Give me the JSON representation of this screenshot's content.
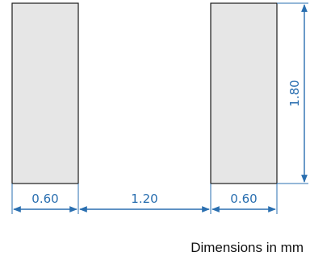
{
  "diagram": {
    "pad_width": "0.60",
    "gap_width": "1.20",
    "pad_width_right": "0.60",
    "pad_height": "1.80",
    "caption": "Dimensions in mm",
    "colors": {
      "pad_fill": "#e6e6e6",
      "pad_stroke": "#1a1a1a",
      "dimension": "#2a6fb0"
    }
  }
}
